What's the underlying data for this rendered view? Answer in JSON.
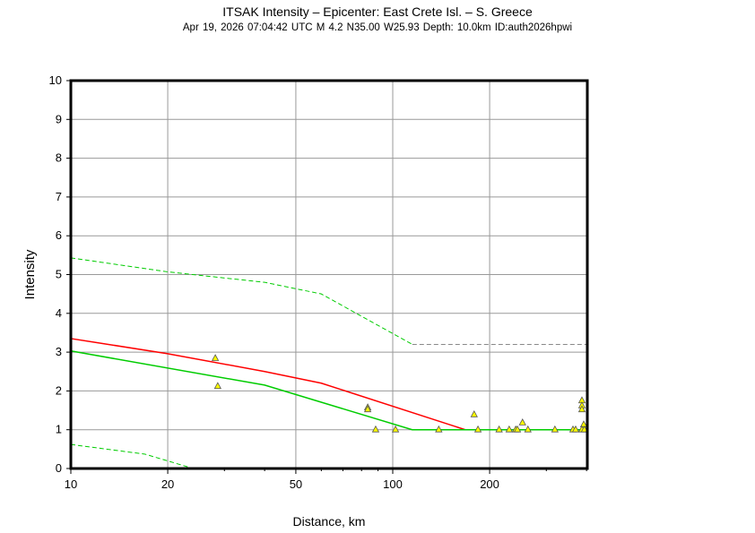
{
  "chart_data": {
    "type": "scatter",
    "title": "ITSAK Intensity –  Epicenter: East Crete Isl. – S. Greece",
    "subtitle": "Apr 19, 2026 07:04:42 UTC   M 4.2   N35.00 W25.93   Depth: 10.0km   ID:auth2026hpwi",
    "xlabel": "Distance, km",
    "ylabel": "Intensity",
    "xscale": "log",
    "xlim": [
      10,
      400
    ],
    "ylim": [
      0,
      10
    ],
    "grid": true,
    "xticks": [
      10,
      20,
      50,
      100,
      200
    ],
    "yticks": [
      0,
      1,
      2,
      3,
      4,
      5,
      6,
      7,
      8,
      9,
      10
    ],
    "observations": {
      "marker": "triangle",
      "color": "#ffff00",
      "x": [
        28.1,
        28.6,
        83.6,
        83.6,
        88.5,
        102,
        139,
        179,
        184,
        214,
        230,
        241,
        244,
        253,
        263,
        319,
        363,
        370,
        387,
        387,
        387,
        392,
        387,
        394
      ],
      "y": [
        2.84,
        2.12,
        1.57,
        1.52,
        1.0,
        1.0,
        1.0,
        1.39,
        1.0,
        1.0,
        1.0,
        1.0,
        1.0,
        1.18,
        1.0,
        1.0,
        1.0,
        1.0,
        1.75,
        1.62,
        1.52,
        1.13,
        1.0,
        1.0
      ]
    },
    "lines": [
      {
        "color": "#ff0000",
        "style": "solid",
        "x": [
          10,
          20,
          40,
          60,
          168,
          400
        ],
        "y": [
          3.35,
          2.96,
          2.5,
          2.2,
          1.0,
          1.0
        ]
      },
      {
        "color": "#00cc00",
        "style": "solid",
        "x": [
          10,
          40,
          115,
          400
        ],
        "y": [
          3.03,
          2.15,
          1.0,
          1.0
        ]
      },
      {
        "color": "#00cc00",
        "style": "dashed",
        "x": [
          10,
          20,
          40,
          60,
          115
        ],
        "y": [
          5.43,
          5.07,
          4.8,
          4.5,
          3.2
        ]
      },
      {
        "color": "#888888",
        "style": "dashed",
        "x": [
          115,
          400
        ],
        "y": [
          3.2,
          3.2
        ]
      },
      {
        "color": "#00cc00",
        "style": "dashed",
        "x": [
          10,
          17,
          24
        ],
        "y": [
          0.62,
          0.37,
          0.0
        ]
      }
    ]
  }
}
